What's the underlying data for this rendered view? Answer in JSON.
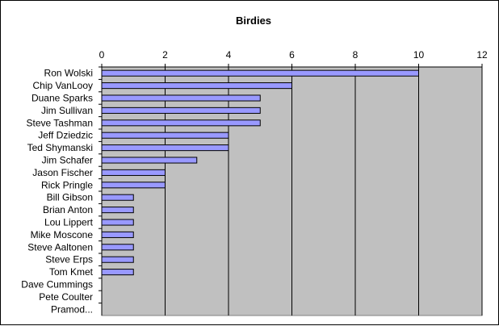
{
  "chart_data": {
    "type": "bar",
    "orientation": "horizontal",
    "title": "Birdies",
    "xlabel": "",
    "ylabel": "",
    "xlim": [
      0,
      12
    ],
    "x_ticks": [
      "0",
      "2",
      "4",
      "6",
      "8",
      "10",
      "12"
    ],
    "x_axis_position": "top",
    "grid": "vertical",
    "legend": "none",
    "categories": [
      "Ron Wolski",
      "Chip VanLooy",
      "Duane Sparks",
      "Jim Sullivan",
      "Steve Tashman",
      "Jeff Dziedzic",
      "Ted Shymanski",
      "Jim Schafer",
      "Jason Fischer",
      "Rick Pringle",
      "Bill Gibson",
      "Brian Anton",
      "Lou Lippert",
      "Mike Moscone",
      "Steve Aaltonen",
      "Steve Erps",
      "Tom Kmet",
      "Dave Cummings",
      "Pete Coulter",
      "Pramod..."
    ],
    "values": [
      10,
      6,
      5,
      5,
      5,
      4,
      4,
      3,
      2,
      2,
      1,
      1,
      1,
      1,
      1,
      1,
      1,
      0,
      0,
      0
    ],
    "colors": {
      "bar_fill": "#9999ff",
      "bar_stroke": "#000000",
      "plot_background": "#c0c0c0",
      "gridline": "#000000"
    }
  }
}
